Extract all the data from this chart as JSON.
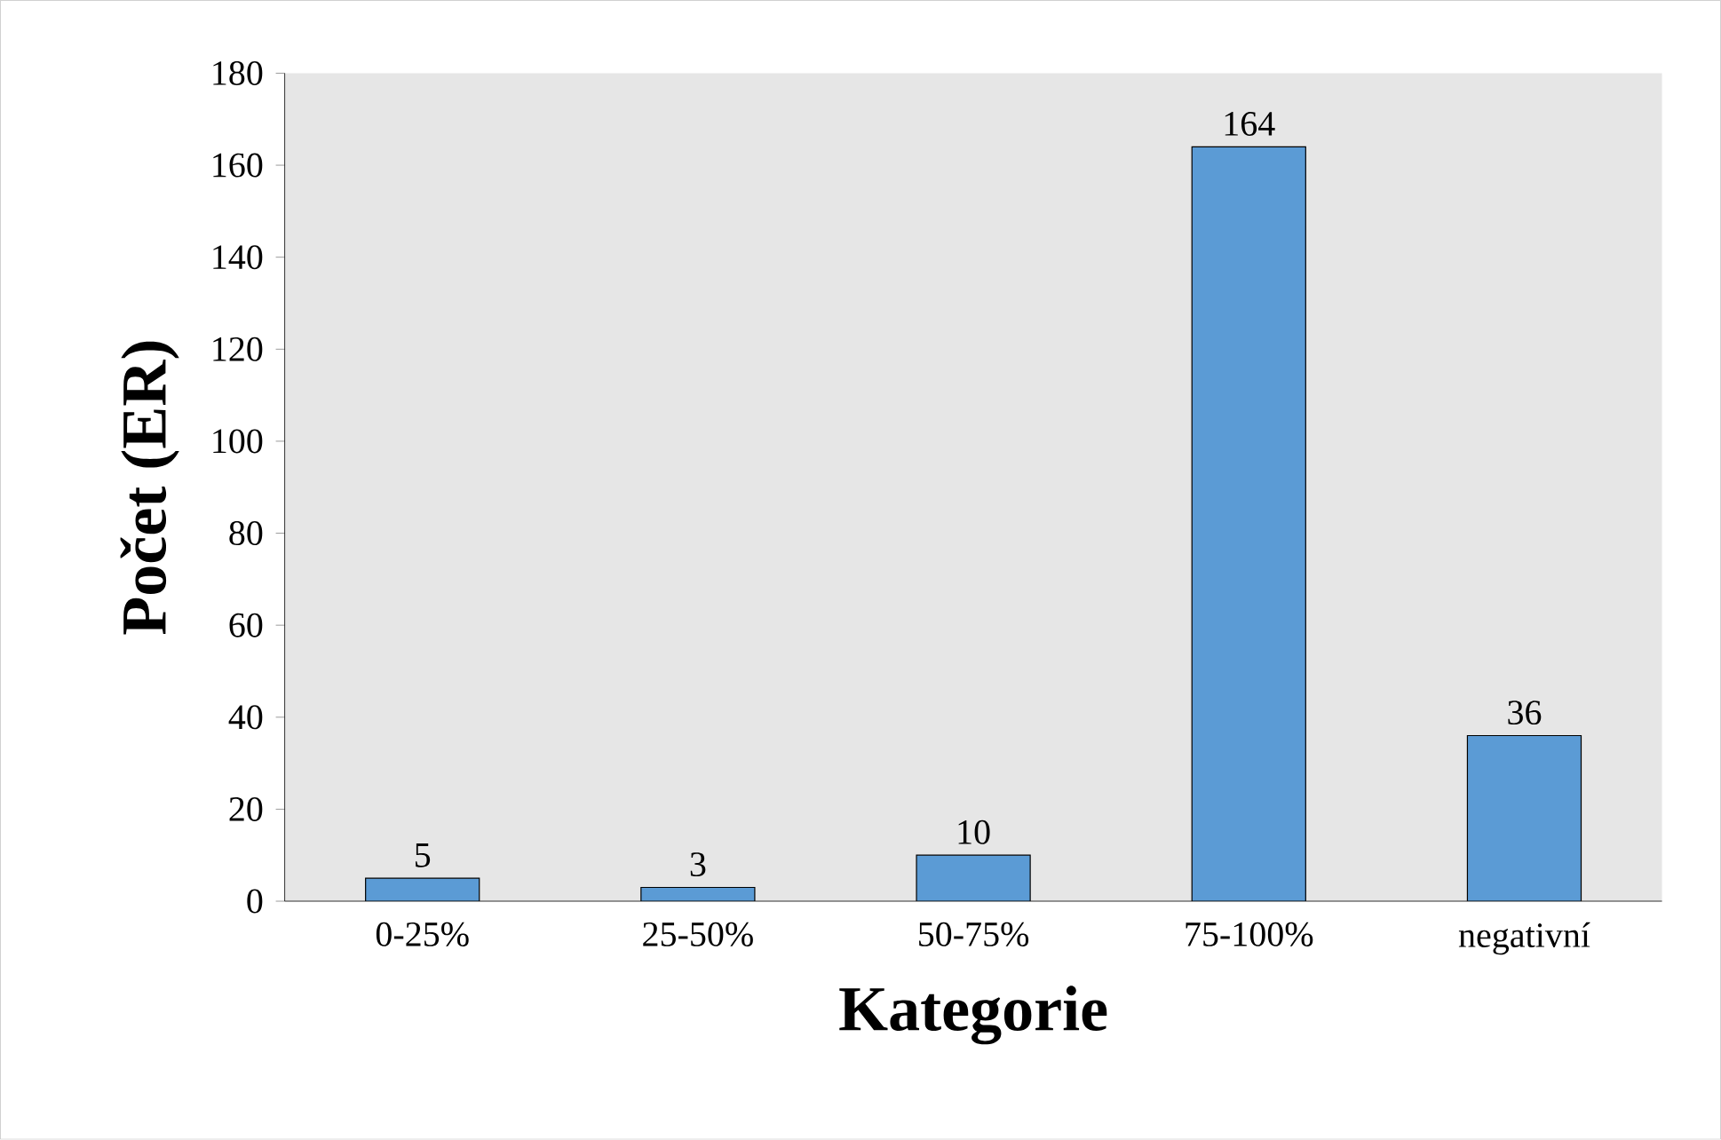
{
  "chart_data": {
    "type": "bar",
    "xlabel": "Kategorie",
    "ylabel": "Počet (ER)",
    "categories": [
      "0-25%",
      "25-50%",
      "50-75%",
      "75-100%",
      "negativní"
    ],
    "values": [
      5,
      3,
      10,
      164,
      36
    ],
    "color": "#5b9bd5",
    "ylim": [
      0,
      180
    ],
    "yticks": [
      0,
      20,
      40,
      60,
      80,
      100,
      120,
      140,
      160,
      180
    ],
    "data_labels": true,
    "grid": false
  }
}
